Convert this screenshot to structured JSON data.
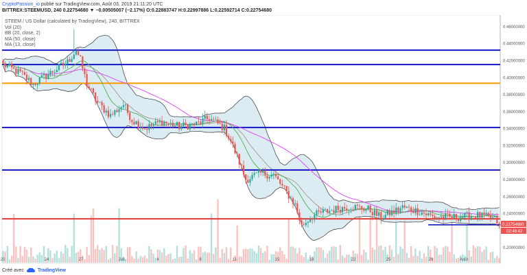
{
  "header": {
    "author": "CryptoPassion_io",
    "published": "publié sur TradingView.com, Août 03, 2019 21:11:20 UTC",
    "symbol_line": "BITTREX:STEEMUSD, 240",
    "change": "0.22754680 ▼ −0.00505007 (−2.17%)",
    "ohlc": "O:0.22883747 H:0.22997886 L:0.22592714 C:0.22754680"
  },
  "legend": {
    "title": "STEEM / US Dollar (calculated by TradingView), 240, BITTREX",
    "vol": "Vol (20)",
    "bb": "BB (20, close, 2)",
    "ma50": "MA (50, close)",
    "ma13": "MA (13, close)"
  },
  "footer": {
    "made_with": "Créé avec",
    "brand": "TradingView"
  },
  "colors": {
    "up": "#26a69a",
    "down": "#ef5350",
    "blue_line": "#1515c8",
    "orange_line": "#ff9800",
    "red_line": "#e53935",
    "bb_fill": "#cfe6ee",
    "bb_line": "#4a4a4a",
    "ma50": "#e040fb",
    "ma13": "#4caf50",
    "price_tag": "#ef5350"
  },
  "chart_data": {
    "type": "candlestick",
    "ylim": [
      0.19,
      0.47
    ],
    "y_ticks": [
      "0.46000000",
      "0.44000000",
      "0.42000000",
      "0.40000000",
      "0.38000000",
      "0.36000000",
      "0.34000000",
      "0.32000000",
      "0.30000000",
      "0.28000000",
      "0.26000000",
      "0.24000000",
      "0.22000000",
      "0.20000000"
    ],
    "x_ticks": [
      "20",
      "24",
      "27",
      "Juil.",
      "4",
      "8",
      "11",
      "15",
      "18",
      "22",
      "25",
      "29",
      "Août"
    ],
    "last_price_label": "0.22754680",
    "countdown_label": "02:48:42",
    "horizontal_lines": [
      {
        "value": 0.432,
        "color": "blue"
      },
      {
        "value": 0.415,
        "color": "blue"
      },
      {
        "value": 0.393,
        "color": "orange"
      },
      {
        "value": 0.341,
        "color": "blue"
      },
      {
        "value": 0.291,
        "color": "blue"
      },
      {
        "value": 0.2335,
        "color": "red"
      }
    ],
    "anchors": [
      [
        0,
        0.415
      ],
      [
        8,
        0.405
      ],
      [
        14,
        0.392
      ],
      [
        20,
        0.402
      ],
      [
        25,
        0.41
      ],
      [
        30,
        0.418
      ],
      [
        34,
        0.432
      ],
      [
        36,
        0.42
      ],
      [
        39,
        0.392
      ],
      [
        44,
        0.37
      ],
      [
        50,
        0.355
      ],
      [
        56,
        0.368
      ],
      [
        60,
        0.35
      ],
      [
        66,
        0.34
      ],
      [
        74,
        0.348
      ],
      [
        82,
        0.342
      ],
      [
        90,
        0.345
      ],
      [
        96,
        0.352
      ],
      [
        103,
        0.34
      ],
      [
        106,
        0.325
      ],
      [
        110,
        0.3
      ],
      [
        113,
        0.28
      ],
      [
        120,
        0.287
      ],
      [
        126,
        0.285
      ],
      [
        131,
        0.268
      ],
      [
        136,
        0.25
      ],
      [
        139,
        0.225
      ],
      [
        143,
        0.235
      ],
      [
        147,
        0.24
      ],
      [
        155,
        0.245
      ],
      [
        162,
        0.248
      ],
      [
        170,
        0.245
      ],
      [
        176,
        0.235
      ],
      [
        180,
        0.24
      ],
      [
        186,
        0.247
      ],
      [
        194,
        0.242
      ],
      [
        200,
        0.236
      ],
      [
        208,
        0.235
      ],
      [
        214,
        0.236
      ],
      [
        220,
        0.238
      ],
      [
        226,
        0.235
      ],
      [
        229,
        0.233
      ],
      [
        231,
        0.2275
      ]
    ]
  }
}
